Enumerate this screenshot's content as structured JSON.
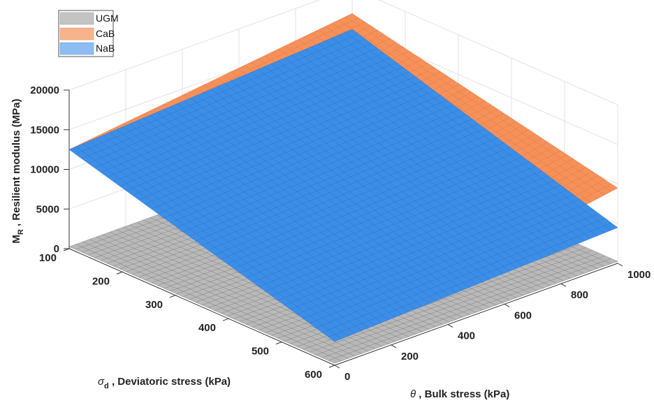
{
  "chart_data": {
    "type": "surface3d",
    "zlabel": {
      "main": "M",
      "sub": "R",
      "rest": " , Resilient modulus (MPa)"
    },
    "xlabel": {
      "sym": "θ",
      "rest": " , Bulk stress  (kPa)"
    },
    "ylabel": {
      "sym": "σ",
      "sub": "d",
      "rest": " , Deviatoric stress (kPa)"
    },
    "xlim": [
      0,
      1000
    ],
    "ylim": [
      100,
      600
    ],
    "zlim": [
      0,
      20000
    ],
    "x_ticks": [
      "0",
      "200",
      "400",
      "600",
      "800",
      "1000"
    ],
    "y_ticks": [
      "100",
      "200",
      "300",
      "400",
      "500",
      "600"
    ],
    "z_ticks": [
      "0",
      "5000",
      "10000",
      "15000",
      "20000"
    ],
    "grid": true,
    "legend_position": "top-left",
    "series": [
      {
        "name": "UGM",
        "color": "#b9b9b9",
        "edge": "#6e6e6e",
        "corners": {
          "x0_y100": 250,
          "x1000_y100": 250,
          "x0_y600": 250,
          "x1000_y600": 250
        }
      },
      {
        "name": "CaB",
        "color": "#f5915a",
        "edge": "#e86f36",
        "corners": {
          "x0_y100": 12500,
          "x1000_y100": 16800,
          "x0_y600": 3500,
          "x1000_y600": 9500
        }
      },
      {
        "name": "NaB",
        "color": "#3d8ee6",
        "edge": "#1f6fd0",
        "corners": {
          "x0_y100": 12500,
          "x1000_y100": 14800,
          "x0_y600": 3000,
          "x1000_y600": 4500
        }
      }
    ]
  }
}
